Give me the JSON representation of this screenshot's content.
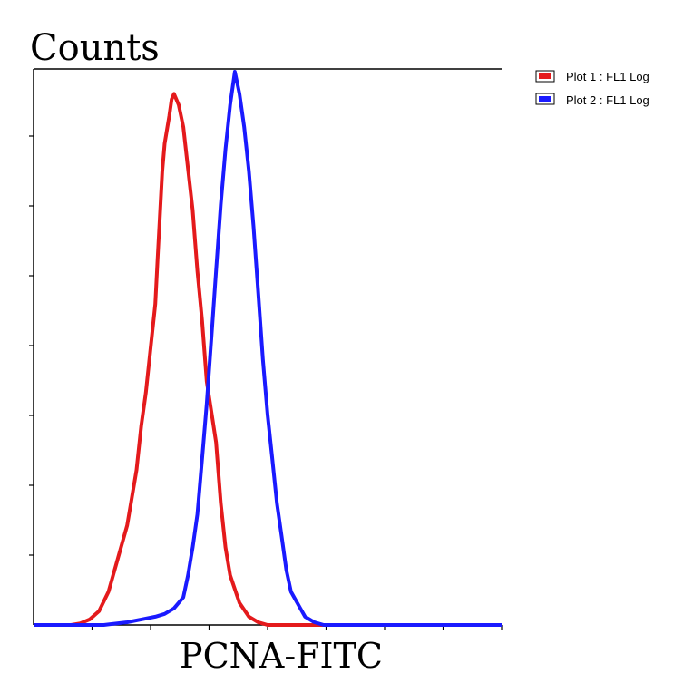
{
  "chart_data": {
    "type": "line",
    "title": "",
    "xlabel": "PCNA-FITC",
    "ylabel": "Counts",
    "x_scale": "log",
    "xlim": [
      0,
      100
    ],
    "ylim": [
      0,
      100
    ],
    "x_ticks_labeled": false,
    "y_ticks_labeled": false,
    "grid": false,
    "legend_position": "top-right",
    "series": [
      {
        "name": "Plot 1 : FL1 Log",
        "color": "#e41a1c",
        "x": [
          0,
          8,
          10,
          12,
          14,
          16,
          18,
          20,
          22,
          23,
          24,
          25,
          26,
          26.5,
          27,
          27.5,
          28,
          29,
          29.5,
          30,
          31,
          32,
          34,
          35,
          36,
          37,
          39,
          40,
          41,
          42,
          44,
          46,
          48,
          50,
          52,
          54,
          56,
          58,
          62,
          70,
          80,
          90,
          100
        ],
        "y": [
          0,
          0,
          0.3,
          1,
          2.5,
          6,
          12,
          18,
          28,
          36,
          42,
          50,
          58,
          66,
          74,
          82,
          87,
          92,
          95,
          96,
          94,
          90,
          75,
          64,
          55,
          44,
          33,
          22,
          14,
          9,
          4,
          1.5,
          0.5,
          0,
          0,
          0,
          0,
          0,
          0,
          0,
          0,
          0,
          0
        ]
      },
      {
        "name": "Plot 2 : FL1 Log",
        "color": "#1a1aff",
        "x": [
          0,
          15,
          20,
          23,
          26,
          28,
          30,
          32,
          33,
          34,
          35,
          36,
          37,
          38,
          39,
          40,
          41,
          42,
          43,
          44,
          45,
          46,
          47,
          48,
          49,
          50,
          51,
          52,
          53,
          54,
          55,
          57,
          58,
          60,
          62,
          70,
          80,
          90,
          100
        ],
        "y": [
          0,
          0,
          0.5,
          1,
          1.5,
          2,
          3,
          5,
          9,
          14,
          20,
          30,
          40,
          52,
          64,
          76,
          86,
          94,
          100,
          96,
          90,
          82,
          72,
          60,
          48,
          38,
          30,
          22,
          16,
          10,
          6,
          3,
          1.5,
          0.5,
          0,
          0,
          0,
          0,
          0
        ]
      }
    ]
  }
}
